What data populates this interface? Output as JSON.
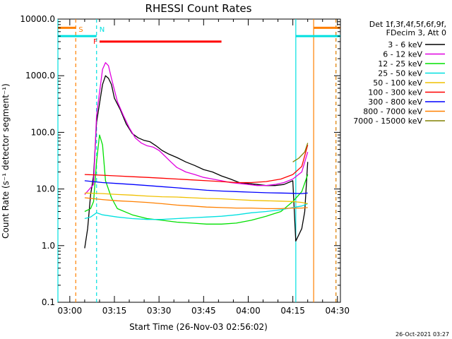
{
  "chart_data": {
    "type": "line",
    "title": "RHESSI Count Rates",
    "xlabel": "Start Time (26-Nov-03 02:56:02)",
    "ylabel": "Count Rate (s⁻¹ detector segment⁻¹)",
    "yscale": "log",
    "ylim": [
      0.1,
      10000
    ],
    "xlim_minutes_since_start": [
      0,
      95
    ],
    "x_unit": "minutes after 02:56:02",
    "yticks": [
      "0.1",
      "1.0",
      "10.0",
      "100.0",
      "1000.0",
      "10000.0"
    ],
    "xticks": [
      {
        "label": "03:00",
        "value": 4
      },
      {
        "label": "03:15",
        "value": 19
      },
      {
        "label": "03:30",
        "value": 34
      },
      {
        "label": "03:45",
        "value": 49
      },
      {
        "label": "04:00",
        "value": 64
      },
      {
        "label": "04:15",
        "value": 79
      },
      {
        "label": "04:30",
        "value": 94
      }
    ],
    "grid": false,
    "legend_position": "right",
    "legend_header": [
      "Det 1f,3f,4f,5f,6f,9f,",
      "FDecim 3, Att 0"
    ],
    "timestamp": "26-Oct-2021 03:27",
    "series": [
      {
        "name": "3 - 6 keV",
        "color": "#000000",
        "points": [
          [
            9,
            0.9
          ],
          [
            10,
            2
          ],
          [
            11,
            8
          ],
          [
            12,
            17
          ],
          [
            13,
            150
          ],
          [
            15,
            700
          ],
          [
            16,
            1000
          ],
          [
            17,
            900
          ],
          [
            18,
            700
          ],
          [
            19,
            400
          ],
          [
            21,
            250
          ],
          [
            23,
            140
          ],
          [
            25,
            95
          ],
          [
            27,
            80
          ],
          [
            29,
            72
          ],
          [
            31,
            68
          ],
          [
            33,
            58
          ],
          [
            35,
            48
          ],
          [
            37,
            42
          ],
          [
            40,
            36
          ],
          [
            43,
            30
          ],
          [
            46,
            26
          ],
          [
            49,
            22
          ],
          [
            52,
            20
          ],
          [
            55,
            17
          ],
          [
            58,
            15
          ],
          [
            61,
            13
          ],
          [
            64,
            12.5
          ],
          [
            67,
            12
          ],
          [
            70,
            11.5
          ],
          [
            73,
            11.5
          ],
          [
            76,
            12
          ],
          [
            79,
            14
          ],
          [
            80,
            1.2
          ],
          [
            82,
            2
          ],
          [
            83,
            4
          ],
          [
            84,
            30
          ]
        ]
      },
      {
        "name": "6 - 12 keV",
        "color": "#e000e0",
        "points": [
          [
            9,
            8
          ],
          [
            12,
            12
          ],
          [
            13,
            200
          ],
          [
            15,
            1300
          ],
          [
            16,
            1700
          ],
          [
            17,
            1500
          ],
          [
            18,
            900
          ],
          [
            20,
            350
          ],
          [
            22,
            200
          ],
          [
            24,
            120
          ],
          [
            26,
            80
          ],
          [
            28,
            65
          ],
          [
            30,
            58
          ],
          [
            32,
            55
          ],
          [
            34,
            48
          ],
          [
            36,
            38
          ],
          [
            38,
            30
          ],
          [
            40,
            24
          ],
          [
            43,
            20
          ],
          [
            46,
            18
          ],
          [
            49,
            16
          ],
          [
            52,
            15
          ],
          [
            55,
            14
          ],
          [
            58,
            13
          ],
          [
            61,
            12.5
          ],
          [
            64,
            12
          ],
          [
            67,
            11.5
          ],
          [
            70,
            11.5
          ],
          [
            73,
            12
          ],
          [
            76,
            13
          ],
          [
            79,
            15
          ],
          [
            82,
            20
          ],
          [
            84,
            45
          ]
        ]
      },
      {
        "name": "12 - 25 keV",
        "color": "#00e000",
        "points": [
          [
            9,
            4
          ],
          [
            11,
            4.5
          ],
          [
            12,
            6
          ],
          [
            13,
            30
          ],
          [
            14,
            90
          ],
          [
            15,
            60
          ],
          [
            16,
            14
          ],
          [
            18,
            7
          ],
          [
            20,
            4.5
          ],
          [
            25,
            3.5
          ],
          [
            30,
            3
          ],
          [
            35,
            2.8
          ],
          [
            40,
            2.6
          ],
          [
            45,
            2.5
          ],
          [
            50,
            2.4
          ],
          [
            55,
            2.4
          ],
          [
            60,
            2.5
          ],
          [
            65,
            2.8
          ],
          [
            70,
            3.3
          ],
          [
            75,
            4
          ],
          [
            79,
            6
          ],
          [
            82,
            9
          ],
          [
            84,
            18
          ]
        ]
      },
      {
        "name": "25 - 50 keV",
        "color": "#00e0e0",
        "points": [
          [
            9,
            3
          ],
          [
            11,
            3.2
          ],
          [
            13,
            3.8
          ],
          [
            15,
            3.5
          ],
          [
            20,
            3.2
          ],
          [
            25,
            3
          ],
          [
            30,
            2.9
          ],
          [
            35,
            2.9
          ],
          [
            40,
            3
          ],
          [
            45,
            3.1
          ],
          [
            50,
            3.2
          ],
          [
            55,
            3.3
          ],
          [
            60,
            3.5
          ],
          [
            65,
            3.8
          ],
          [
            70,
            4
          ],
          [
            75,
            4.3
          ],
          [
            79,
            4.7
          ],
          [
            82,
            5
          ],
          [
            84,
            5.5
          ]
        ]
      },
      {
        "name": "50 - 100 keV",
        "color": "#f0c000",
        "points": [
          [
            9,
            8.5
          ],
          [
            15,
            8.3
          ],
          [
            20,
            8
          ],
          [
            25,
            7.8
          ],
          [
            30,
            7.5
          ],
          [
            35,
            7.3
          ],
          [
            40,
            7.2
          ],
          [
            45,
            7
          ],
          [
            50,
            6.8
          ],
          [
            55,
            6.7
          ],
          [
            60,
            6.5
          ],
          [
            65,
            6.3
          ],
          [
            70,
            6.2
          ],
          [
            75,
            6.1
          ],
          [
            79,
            6
          ],
          [
            82,
            5.8
          ],
          [
            84,
            5.5
          ]
        ]
      },
      {
        "name": "100 - 300 keV",
        "color": "#ff0000",
        "points": [
          [
            9,
            18
          ],
          [
            15,
            17.5
          ],
          [
            20,
            17
          ],
          [
            25,
            16.5
          ],
          [
            30,
            16
          ],
          [
            35,
            15.5
          ],
          [
            40,
            15
          ],
          [
            45,
            14.5
          ],
          [
            50,
            14
          ],
          [
            55,
            13.5
          ],
          [
            60,
            13
          ],
          [
            65,
            13
          ],
          [
            70,
            13.5
          ],
          [
            75,
            15
          ],
          [
            79,
            18
          ],
          [
            82,
            25
          ],
          [
            84,
            60
          ]
        ]
      },
      {
        "name": "300 - 800 keV",
        "color": "#0000ff",
        "points": [
          [
            9,
            14
          ],
          [
            15,
            13
          ],
          [
            20,
            12.5
          ],
          [
            25,
            12
          ],
          [
            30,
            11.5
          ],
          [
            35,
            11
          ],
          [
            40,
            10.5
          ],
          [
            45,
            10
          ],
          [
            50,
            9.5
          ],
          [
            55,
            9.2
          ],
          [
            60,
            9
          ],
          [
            65,
            8.8
          ],
          [
            70,
            8.6
          ],
          [
            75,
            8.5
          ],
          [
            79,
            8.4
          ],
          [
            82,
            8.3
          ],
          [
            84,
            8.5
          ]
        ]
      },
      {
        "name": "800 - 7000 keV",
        "color": "#ff8000",
        "points": [
          [
            9,
            7
          ],
          [
            15,
            6.5
          ],
          [
            20,
            6.2
          ],
          [
            25,
            6
          ],
          [
            30,
            5.8
          ],
          [
            35,
            5.5
          ],
          [
            40,
            5.2
          ],
          [
            45,
            5
          ],
          [
            50,
            4.8
          ],
          [
            55,
            4.7
          ],
          [
            60,
            4.6
          ],
          [
            65,
            4.6
          ],
          [
            70,
            4.5
          ],
          [
            75,
            4.5
          ],
          [
            79,
            4.6
          ],
          [
            82,
            4.6
          ],
          [
            84,
            4.7
          ]
        ]
      },
      {
        "name": "7000 - 15000 keV",
        "color": "#808000",
        "points": [
          [
            79,
            30
          ],
          [
            81,
            35
          ],
          [
            83,
            45
          ],
          [
            84,
            65
          ]
        ]
      }
    ],
    "markers": [
      {
        "label": "S",
        "color": "#ff8000",
        "dashed": true,
        "x": 6
      },
      {
        "label": "N",
        "color": "#00e0e0",
        "dashed": true,
        "x": 13
      },
      {
        "label": "F",
        "color": "#ff0000",
        "bar_x": [
          14,
          55
        ]
      }
    ],
    "bars": [
      {
        "color": "#ff8000",
        "y": 7000,
        "x": [
          0,
          6
        ],
        "thickness_class": "thick"
      },
      {
        "color": "#00e0e0",
        "y": 5000,
        "x": [
          0,
          13
        ],
        "thickness_class": "thick"
      },
      {
        "color": "#ff8000",
        "y": 7000,
        "x": [
          86,
          95
        ]
      },
      {
        "color": "#00e0e0",
        "y": 5000,
        "x": [
          80,
          95
        ]
      }
    ],
    "vlines": [
      {
        "color": "#00e0e0",
        "dashed": false,
        "x": 0
      },
      {
        "color": "#ff8000",
        "dashed": true,
        "x": 6
      },
      {
        "color": "#00e0e0",
        "dashed": true,
        "x": 13
      },
      {
        "color": "#00e0e0",
        "dashed": false,
        "x": 80
      },
      {
        "color": "#ff8000",
        "dashed": false,
        "x": 86
      },
      {
        "color": "#00e0e0",
        "dashed": true,
        "x": 93.5
      },
      {
        "color": "#ff8000",
        "dashed": true,
        "x": 93.5
      }
    ]
  }
}
